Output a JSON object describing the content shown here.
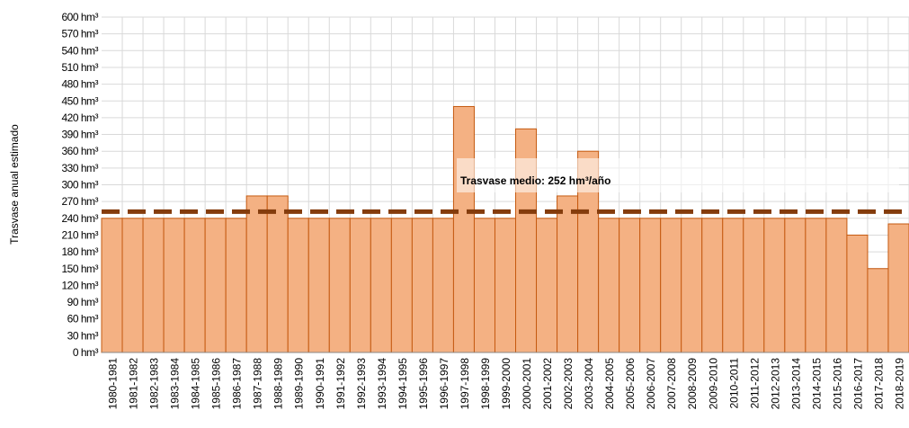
{
  "chart_data": {
    "type": "bar",
    "y_label": "Trasvase anual estimado",
    "categories": [
      "1980-1981",
      "1981-1982",
      "1982-1983",
      "1983-1984",
      "1984-1985",
      "1985-1986",
      "1986-1987",
      "1987-1988",
      "1988-1989",
      "1989-1990",
      "1990-1991",
      "1991-1992",
      "1992-1993",
      "1993-1994",
      "1994-1995",
      "1995-1996",
      "1996-1997",
      "1997-1998",
      "1998-1999",
      "1999-2000",
      "2000-2001",
      "2001-2002",
      "2002-2003",
      "2003-2004",
      "2004-2005",
      "2005-2006",
      "2006-2007",
      "2007-2008",
      "2008-2009",
      "2009-2010",
      "2010-2011",
      "2011-2012",
      "2012-2013",
      "2013-2014",
      "2014-2015",
      "2015-2016",
      "2016-2017",
      "2017-2018",
      "2018-2019"
    ],
    "values": [
      240,
      240,
      240,
      240,
      240,
      240,
      240,
      280,
      280,
      240,
      240,
      240,
      240,
      240,
      240,
      240,
      240,
      440,
      240,
      240,
      400,
      240,
      280,
      360,
      240,
      240,
      240,
      240,
      240,
      240,
      240,
      240,
      240,
      240,
      240,
      240,
      210,
      150,
      230
    ],
    "color": "#f4b183",
    "edge_color": "#c55a11",
    "ylim": [
      0,
      600
    ],
    "yticks": [
      {
        "value": 0,
        "label": "0 hm³"
      },
      {
        "value": 30,
        "label": "30 hm³"
      },
      {
        "value": 60,
        "label": "60 hm³"
      },
      {
        "value": 90,
        "label": "90 hm³"
      },
      {
        "value": 120,
        "label": "120 hm³"
      },
      {
        "value": 150,
        "label": "150 hm³"
      },
      {
        "value": 180,
        "label": "180 hm³"
      },
      {
        "value": 210,
        "label": "210 hm³"
      },
      {
        "value": 240,
        "label": "240 hm³"
      },
      {
        "value": 270,
        "label": "270 hm³"
      },
      {
        "value": 300,
        "label": "300 hm³"
      },
      {
        "value": 330,
        "label": "330 hm³"
      },
      {
        "value": 360,
        "label": "360 hm³"
      },
      {
        "value": 390,
        "label": "390 hm³"
      },
      {
        "value": 420,
        "label": "420 hm³"
      },
      {
        "value": 450,
        "label": "450 hm³"
      },
      {
        "value": 480,
        "label": "480 hm³"
      },
      {
        "value": 510,
        "label": "510 hm³"
      },
      {
        "value": 540,
        "label": "540 hm³"
      },
      {
        "value": 570,
        "label": "570 hm³"
      },
      {
        "value": 600,
        "label": "600 hm³"
      }
    ],
    "grid": true,
    "mean_line": {
      "value": 252,
      "color": "#843c0c",
      "label": "Trasvase medio: 252 hm³/año"
    }
  }
}
